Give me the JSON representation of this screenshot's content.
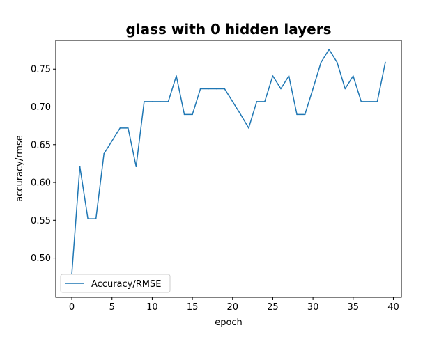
{
  "chart_data": {
    "type": "line",
    "title": "glass with 0 hidden layers",
    "xlabel": "epoch",
    "ylabel": "accuracy/rmse",
    "xlim": [
      -2,
      41
    ],
    "ylim": [
      0.448,
      0.788
    ],
    "xticks": [
      0,
      5,
      10,
      15,
      20,
      25,
      30,
      35,
      40
    ],
    "yticks": [
      0.5,
      0.55,
      0.6,
      0.65,
      0.7,
      0.75
    ],
    "x_tick_labels": [
      "0",
      "5",
      "10",
      "15",
      "20",
      "25",
      "30",
      "35",
      "40"
    ],
    "y_tick_labels": [
      "0.50",
      "0.55",
      "0.60",
      "0.65",
      "0.70",
      "0.75"
    ],
    "grid": false,
    "legend_position": "lower-left",
    "series": [
      {
        "name": "Accuracy/RMSE",
        "color": "#1f77b4",
        "x": [
          0,
          1,
          2,
          3,
          4,
          5,
          6,
          7,
          8,
          9,
          10,
          11,
          12,
          13,
          14,
          15,
          16,
          17,
          18,
          19,
          20,
          21,
          22,
          23,
          24,
          25,
          26,
          27,
          28,
          29,
          30,
          31,
          32,
          33,
          34,
          35,
          36,
          37,
          38,
          39
        ],
        "y": [
          0.479,
          0.621,
          0.552,
          0.552,
          0.638,
          0.655,
          0.672,
          0.672,
          0.621,
          0.707,
          0.707,
          0.707,
          0.707,
          0.741,
          0.69,
          0.69,
          0.724,
          0.724,
          0.724,
          0.724,
          0.707,
          0.69,
          0.672,
          0.707,
          0.707,
          0.741,
          0.724,
          0.741,
          0.69,
          0.69,
          0.724,
          0.759,
          0.776,
          0.759,
          0.724,
          0.741,
          0.707,
          0.707,
          0.707,
          0.759
        ]
      }
    ]
  }
}
